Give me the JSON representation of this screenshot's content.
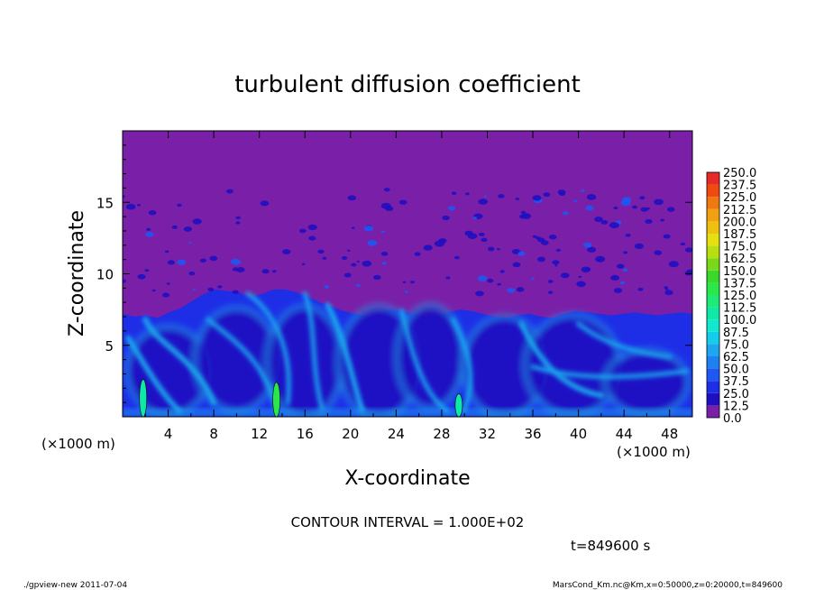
{
  "chart_data": {
    "type": "heatmap",
    "title": "turbulent diffusion coefficient",
    "xlabel": "X-coordinate",
    "ylabel": "Z-coordinate",
    "x_unit": "(×1000 m)",
    "y_unit": "(×1000 m)",
    "xlim": [
      0,
      50
    ],
    "ylim": [
      0,
      20
    ],
    "x_ticks": [
      "4",
      "8",
      "12",
      "16",
      "20",
      "24",
      "28",
      "32",
      "36",
      "40",
      "44",
      "48"
    ],
    "y_ticks": [
      "5",
      "10",
      "15"
    ],
    "colorbar_labels": [
      "0.0",
      "12.5",
      "25.0",
      "37.5",
      "50.0",
      "62.5",
      "75.0",
      "87.5",
      "100.0",
      "112.5",
      "125.0",
      "137.5",
      "150.0",
      "162.5",
      "175.0",
      "187.5",
      "200.0",
      "212.5",
      "225.0",
      "237.5",
      "250.0"
    ],
    "colorbar_colors": [
      "#7a1fa8",
      "#1e0fc0",
      "#1e2ee6",
      "#1f57f2",
      "#1f80f2",
      "#1fa6f0",
      "#14cdea",
      "#10e8d0",
      "#10e8a8",
      "#1eea78",
      "#2ae84a",
      "#3ad82a",
      "#7ad81a",
      "#b8e010",
      "#e6e010",
      "#f0c010",
      "#f0a010",
      "#f07810",
      "#f04a10",
      "#e62a2a",
      "#f07878"
    ],
    "contour_interval": "CONTOUR INTERVAL = 1.000E+02",
    "time": "t=849600 s",
    "boundary_layer_top": [
      7.2,
      7.0,
      7.1,
      6.9,
      7.3,
      7.6,
      8.1,
      8.6,
      8.9,
      8.8,
      8.7,
      8.4,
      8.6,
      8.9,
      8.9,
      8.7,
      8.4,
      8.0,
      7.7,
      7.4,
      7.2,
      7.0,
      7.2,
      7.5,
      7.4,
      7.2,
      7.0,
      7.1,
      7.3,
      7.5,
      7.4,
      7.2,
      7.0,
      6.9,
      7.1,
      7.2,
      7.0,
      6.9,
      7.2,
      7.4,
      7.3,
      7.2,
      7.1,
      7.2,
      7.3,
      7.2,
      7.1,
      7.2,
      7.3,
      7.2
    ],
    "high_values": [
      {
        "x": 13.5,
        "z": 1.2,
        "value": 125
      },
      {
        "x": 29.5,
        "z": 0.8,
        "value": 110
      },
      {
        "x": 1.8,
        "z": 1.3,
        "value": 105
      }
    ]
  },
  "footer": {
    "left": "./gpview-new   2011-07-04",
    "right": "MarsCond_Km.nc@Km,x=0:50000,z=0:20000,t=849600"
  }
}
